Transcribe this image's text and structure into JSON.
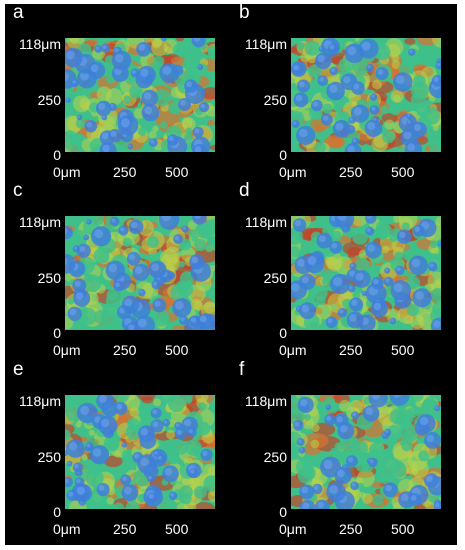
{
  "figure": {
    "panels": [
      {
        "label": "a",
        "y_top": "118",
        "y_unit": "μm",
        "y_mid": "250",
        "y_zero": "0",
        "x_zero": "0",
        "x_unit": "μm",
        "x_mid": "250",
        "x_max": "500",
        "blob_density": 0.55,
        "seed": 11
      },
      {
        "label": "b",
        "y_top": "118",
        "y_unit": "μm",
        "y_mid": "250",
        "y_zero": "0",
        "x_zero": "0",
        "x_unit": "μm",
        "x_mid": "250",
        "x_max": "500",
        "blob_density": 0.45,
        "seed": 23
      },
      {
        "label": "c",
        "y_top": "118",
        "y_unit": "μm",
        "y_mid": "250",
        "y_zero": "0",
        "x_zero": "0",
        "x_unit": "μm",
        "x_mid": "250",
        "x_max": "500",
        "blob_density": 0.5,
        "seed": 37
      },
      {
        "label": "d",
        "y_top": "118",
        "y_unit": "μm",
        "y_mid": "250",
        "y_zero": "0",
        "x_zero": "0",
        "x_unit": "μm",
        "x_mid": "250",
        "x_max": "500",
        "blob_density": 0.5,
        "seed": 41
      },
      {
        "label": "e",
        "y_top": "118",
        "y_unit": "μm",
        "y_mid": "250",
        "y_zero": "0",
        "x_zero": "0",
        "x_unit": "μm",
        "x_mid": "250",
        "x_max": "500",
        "blob_density": 0.6,
        "seed": 53
      },
      {
        "label": "f",
        "y_top": "118",
        "y_unit": "μm",
        "y_mid": "250",
        "y_zero": "0",
        "x_zero": "0",
        "x_unit": "μm",
        "x_mid": "250",
        "x_max": "500",
        "blob_density": 0.4,
        "seed": 67
      }
    ],
    "colors": {
      "background": "#000000",
      "surface_low": "#3f7fd8",
      "surface_mid": "#3fc08a",
      "surface_midhigh": "#b9d24a",
      "surface_high": "#d9722f",
      "surface_peak": "#c2452a"
    }
  }
}
